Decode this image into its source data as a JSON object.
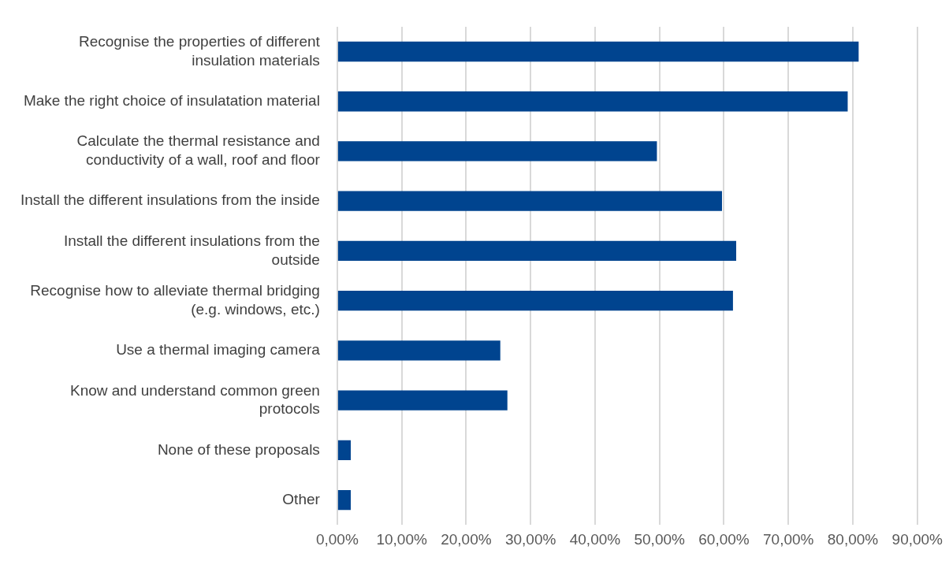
{
  "chart_data": {
    "type": "bar",
    "orientation": "horizontal",
    "categories": [
      "Recognise the properties of different insulation materials",
      "Make the right choice of insulatation material",
      "Calculate the thermal resistance and conductivity of a wall, roof and floor",
      "Install the different insulations from the inside",
      "Install the different insulations from the outside",
      "Recognise how to alleviate thermal bridging (e.g. windows, etc.)",
      "Use a thermal imaging camera",
      "Know and understand common green protocols",
      "None of these proposals",
      "Other"
    ],
    "values": [
      80.9,
      79.2,
      49.6,
      59.7,
      61.9,
      61.4,
      25.3,
      26.4,
      2.1,
      2.1
    ],
    "color": "#00448f",
    "xlim": [
      0,
      90
    ],
    "xticks": [
      {
        "value": 0,
        "label": "0,00%"
      },
      {
        "value": 10,
        "label": "10,00%"
      },
      {
        "value": 20,
        "label": "20,00%"
      },
      {
        "value": 30,
        "label": "30,00%"
      },
      {
        "value": 40,
        "label": "40,00%"
      },
      {
        "value": 50,
        "label": "50,00%"
      },
      {
        "value": 60,
        "label": "60,00%"
      },
      {
        "value": 70,
        "label": "70,00%"
      },
      {
        "value": 80,
        "label": "80,00%"
      },
      {
        "value": 90,
        "label": "90,00%"
      }
    ],
    "grid": "x",
    "legend": false
  }
}
